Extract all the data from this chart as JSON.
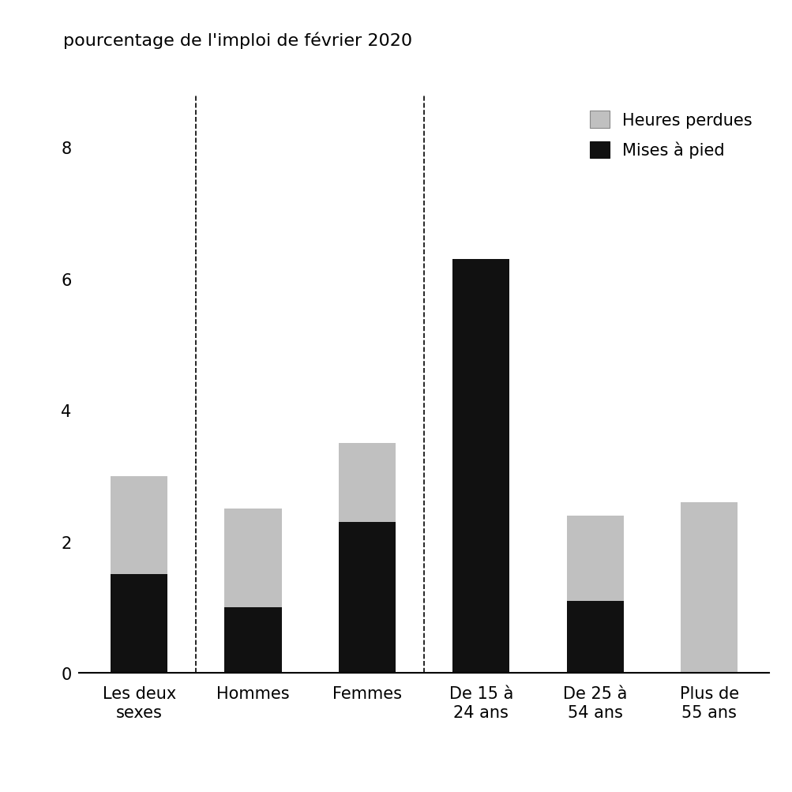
{
  "categories": [
    "Les deux\nsexes",
    "Hommes",
    "Femmes",
    "De 15 à\n24 ans",
    "De 25 à\n54 ans",
    "Plus de\n55 ans"
  ],
  "mises_a_pied": [
    1.5,
    1.0,
    2.3,
    6.3,
    1.1,
    0.0
  ],
  "heures_perdues": [
    1.5,
    1.5,
    1.2,
    0.0,
    1.3,
    2.6
  ],
  "color_mises": "#111111",
  "color_heures": "#c0c0c0",
  "title": "pourcentage de l'imploi de février 2020",
  "ylim": [
    0,
    8.8
  ],
  "yticks": [
    0,
    2,
    4,
    6,
    8
  ],
  "legend_heures": "Heures perdues",
  "legend_mises": "Mises à pied",
  "bar_width": 0.5,
  "background_color": "#ffffff",
  "dashed_line_after": [
    0,
    2
  ],
  "title_fontsize": 16,
  "tick_fontsize": 15,
  "legend_fontsize": 15
}
